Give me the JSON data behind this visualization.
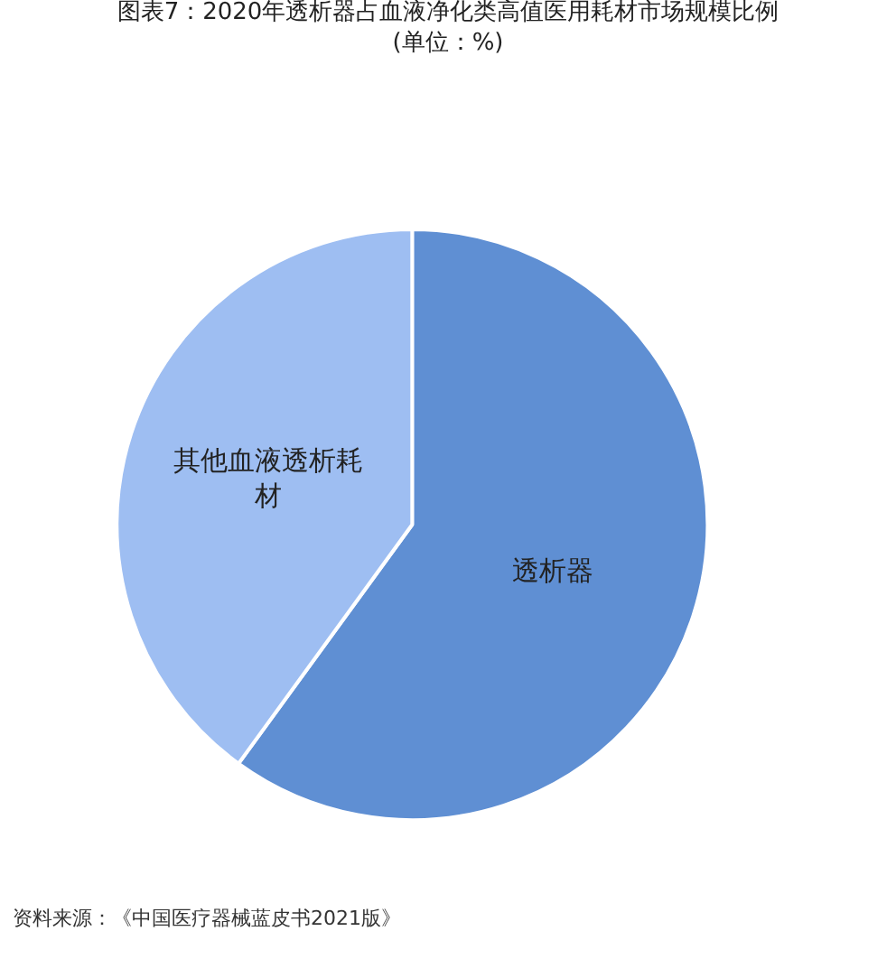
{
  "chart_data": {
    "type": "pie",
    "title": "图表7：2020年透析器占血液净化类高值医用耗材市场规模比例(单位：%)",
    "categories": [
      "透析器",
      "其他血液透析耗材"
    ],
    "values": [
      60,
      40
    ],
    "colors": [
      "#5f8fd3",
      "#9ebef2"
    ],
    "legend": false,
    "annotations": [
      "资料来源：《中国医疗器械蓝皮书2021版》"
    ]
  }
}
